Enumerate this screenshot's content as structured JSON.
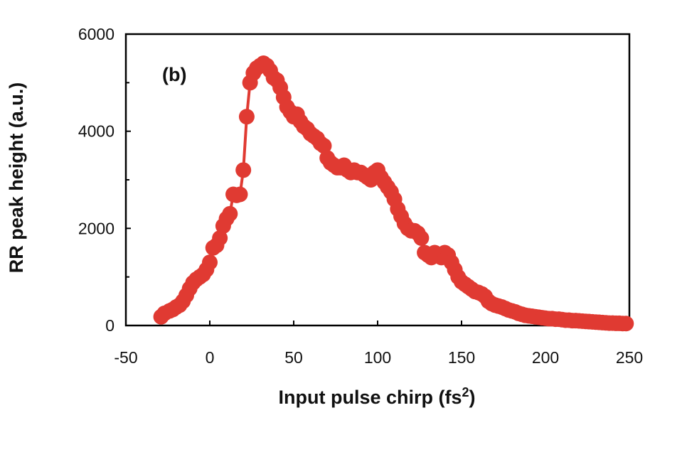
{
  "chart_data": {
    "type": "line",
    "title": "",
    "panel_label": "(b)",
    "xlabel": "Input pulse chirp (fs",
    "xlabel_superscript": "2",
    "xlabel_suffix": ")",
    "ylabel": "RR peak height (a.u.)",
    "xlim": [
      -50,
      250
    ],
    "ylim": [
      0,
      6000
    ],
    "xticks": [
      -50,
      0,
      50,
      100,
      150,
      200,
      250
    ],
    "yticks": [
      0,
      2000,
      4000,
      6000
    ],
    "grid": false,
    "marker": "circle",
    "series": [
      {
        "name": "RR peak height",
        "color": "#e03a32",
        "x": [
          -29,
          -27,
          -24,
          -22,
          -20,
          -18,
          -16,
          -14,
          -12,
          -10,
          -8,
          -6,
          -4,
          -2,
          0,
          2,
          4,
          6,
          8,
          10,
          12,
          14,
          16,
          18,
          20,
          22,
          24,
          26,
          28,
          30,
          32,
          34,
          36,
          38,
          40,
          42,
          44,
          46,
          48,
          50,
          52,
          54,
          56,
          58,
          60,
          62,
          64,
          66,
          68,
          70,
          72,
          74,
          76,
          78,
          80,
          82,
          84,
          86,
          88,
          90,
          92,
          94,
          96,
          98,
          100,
          102,
          104,
          106,
          108,
          110,
          112,
          114,
          116,
          118,
          120,
          122,
          124,
          126,
          128,
          130,
          132,
          134,
          136,
          138,
          140,
          142,
          144,
          146,
          148,
          150,
          152,
          154,
          156,
          158,
          160,
          162,
          164,
          166,
          168,
          170,
          172,
          174,
          176,
          178,
          180,
          182,
          184,
          186,
          188,
          190,
          192,
          194,
          196,
          198,
          200,
          202,
          204,
          206,
          208,
          210,
          212,
          214,
          216,
          218,
          220,
          222,
          224,
          226,
          228,
          230,
          232,
          234,
          236,
          238,
          240,
          242,
          244,
          246,
          248
        ],
        "values": [
          180,
          250,
          300,
          330,
          380,
          420,
          500,
          620,
          760,
          880,
          950,
          1000,
          1050,
          1150,
          1300,
          1600,
          1650,
          1800,
          2050,
          2200,
          2300,
          2700,
          2680,
          2700,
          3200,
          4300,
          5000,
          5200,
          5300,
          5350,
          5400,
          5350,
          5250,
          5100,
          5050,
          4900,
          4700,
          4500,
          4400,
          4300,
          4350,
          4200,
          4100,
          4050,
          3950,
          3900,
          3850,
          3750,
          3700,
          3450,
          3350,
          3300,
          3250,
          3250,
          3300,
          3200,
          3150,
          3200,
          3150,
          3150,
          3100,
          3050,
          3000,
          3150,
          3200,
          3050,
          2950,
          2850,
          2750,
          2600,
          2400,
          2250,
          2100,
          2000,
          1950,
          1950,
          1900,
          1800,
          1500,
          1450,
          1400,
          1500,
          1450,
          1400,
          1500,
          1450,
          1300,
          1150,
          1000,
          900,
          850,
          800,
          750,
          700,
          680,
          650,
          600,
          500,
          450,
          420,
          400,
          380,
          350,
          320,
          300,
          280,
          250,
          230,
          210,
          200,
          190,
          180,
          170,
          160,
          150,
          140,
          140,
          130,
          130,
          120,
          110,
          110,
          100,
          100,
          95,
          90,
          85,
          80,
          75,
          70,
          65,
          60,
          55,
          50,
          50,
          45,
          45,
          40,
          40
        ]
      }
    ]
  }
}
